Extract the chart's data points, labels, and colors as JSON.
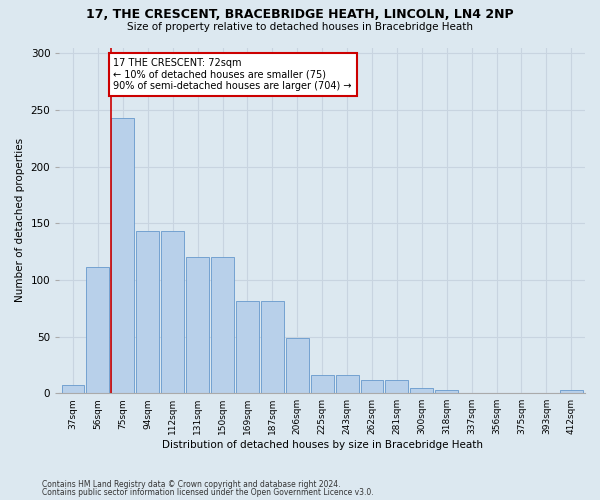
{
  "title1": "17, THE CRESCENT, BRACEBRIDGE HEATH, LINCOLN, LN4 2NP",
  "title2": "Size of property relative to detached houses in Bracebridge Heath",
  "xlabel": "Distribution of detached houses by size in Bracebridge Heath",
  "ylabel": "Number of detached properties",
  "footnote1": "Contains HM Land Registry data © Crown copyright and database right 2024.",
  "footnote2": "Contains public sector information licensed under the Open Government Licence v3.0.",
  "bar_labels": [
    "37sqm",
    "56sqm",
    "75sqm",
    "94sqm",
    "112sqm",
    "131sqm",
    "150sqm",
    "169sqm",
    "187sqm",
    "206sqm",
    "225sqm",
    "243sqm",
    "262sqm",
    "281sqm",
    "300sqm",
    "318sqm",
    "337sqm",
    "356sqm",
    "375sqm",
    "393sqm",
    "412sqm"
  ],
  "bar_values": [
    7,
    111,
    243,
    143,
    143,
    120,
    120,
    81,
    81,
    49,
    16,
    16,
    12,
    12,
    5,
    3,
    0,
    0,
    0,
    0,
    3
  ],
  "bar_color": "#b8d0ea",
  "bar_edge_color": "#6699cc",
  "grid_color": "#c8d4e0",
  "bg_color": "#dce8f0",
  "annotation_line1": "17 THE CRESCENT: 72sqm",
  "annotation_line2": "← 10% of detached houses are smaller (75)",
  "annotation_line3": "90% of semi-detached houses are larger (704) →",
  "annotation_box_color": "#ffffff",
  "annotation_box_edge": "#cc0000",
  "red_line_color": "#cc0000",
  "ylim": [
    0,
    305
  ],
  "yticks": [
    0,
    50,
    100,
    150,
    200,
    250,
    300
  ]
}
